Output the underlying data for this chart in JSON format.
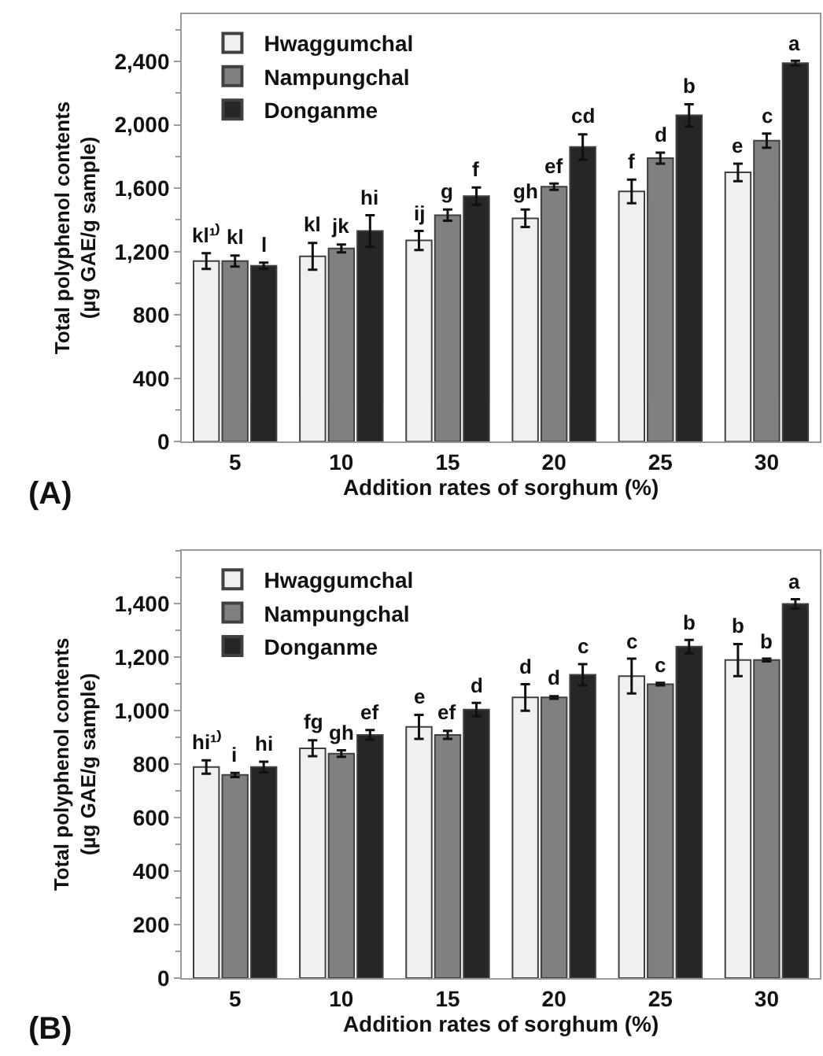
{
  "chart_data": [
    {
      "type": "bar",
      "xlabel": "Addition rates of sorghum (%)",
      "ylabel": "Total polyphenol contents\n(µg GAE/g sample)",
      "categories": [
        "5",
        "10",
        "15",
        "20",
        "25",
        "30"
      ],
      "ylim": [
        0,
        2700
      ],
      "yticks": [
        {
          "value": 0,
          "label": "0"
        },
        {
          "value": 400,
          "label": "400"
        },
        {
          "value": 800,
          "label": "800"
        },
        {
          "value": 1200,
          "label": "1,200"
        },
        {
          "value": 1600,
          "label": "1,600"
        },
        {
          "value": 2000,
          "label": "2,000"
        },
        {
          "value": 2400,
          "label": "2,400"
        }
      ],
      "legend": "top left",
      "annotations": [
        "(A)"
      ],
      "series": [
        {
          "name": "Hwaggumchal",
          "color": "#f0f0f0",
          "values": [
            1140,
            1170,
            1270,
            1410,
            1580,
            1700
          ],
          "errors": [
            50,
            85,
            60,
            55,
            75,
            55
          ],
          "value_labels": [
            "kl¹⁾",
            "kl",
            "ij",
            "gh",
            "f",
            "e"
          ]
        },
        {
          "name": "Nampungchal",
          "color": "#808080",
          "values": [
            1140,
            1220,
            1430,
            1610,
            1790,
            1900
          ],
          "errors": [
            35,
            25,
            35,
            20,
            35,
            45
          ],
          "value_labels": [
            "kl",
            "jk",
            "g",
            "ef",
            "d",
            "c"
          ]
        },
        {
          "name": "Donganme",
          "color": "#262626",
          "values": [
            1110,
            1330,
            1550,
            1860,
            2060,
            2390
          ],
          "errors": [
            20,
            100,
            55,
            80,
            70,
            15
          ],
          "value_labels": [
            "l",
            "hi",
            "f",
            "cd",
            "b",
            "a"
          ]
        }
      ]
    },
    {
      "type": "bar",
      "xlabel": "Addition rates of sorghum (%)",
      "ylabel": "Total polyphenol contents\n(µg GAE/g sample)",
      "categories": [
        "5",
        "10",
        "15",
        "20",
        "25",
        "30"
      ],
      "ylim": [
        0,
        1600
      ],
      "yticks": [
        {
          "value": 0,
          "label": "0"
        },
        {
          "value": 200,
          "label": "200"
        },
        {
          "value": 400,
          "label": "400"
        },
        {
          "value": 600,
          "label": "600"
        },
        {
          "value": 800,
          "label": "800"
        },
        {
          "value": 1000,
          "label": "1,000"
        },
        {
          "value": 1200,
          "label": "1,200"
        },
        {
          "value": 1400,
          "label": "1,400"
        }
      ],
      "legend": "top left",
      "annotations": [
        "(B)"
      ],
      "series": [
        {
          "name": "Hwaggumchal",
          "color": "#f0f0f0",
          "values": [
            790,
            860,
            940,
            1050,
            1130,
            1190
          ],
          "errors": [
            25,
            30,
            45,
            50,
            65,
            60
          ],
          "value_labels": [
            "hi¹⁾",
            "fg",
            "e",
            "d",
            "c",
            "b"
          ]
        },
        {
          "name": "Nampungchal",
          "color": "#808080",
          "values": [
            760,
            840,
            910,
            1050,
            1100,
            1190
          ],
          "errors": [
            8,
            12,
            15,
            5,
            5,
            5
          ],
          "value_labels": [
            "i",
            "gh",
            "ef",
            "d",
            "c",
            "b"
          ]
        },
        {
          "name": "Donganme",
          "color": "#262626",
          "values": [
            790,
            910,
            1005,
            1135,
            1240,
            1400
          ],
          "errors": [
            20,
            18,
            25,
            40,
            25,
            18
          ],
          "value_labels": [
            "hi",
            "ef",
            "d",
            "c",
            "b",
            "a"
          ]
        }
      ]
    }
  ]
}
